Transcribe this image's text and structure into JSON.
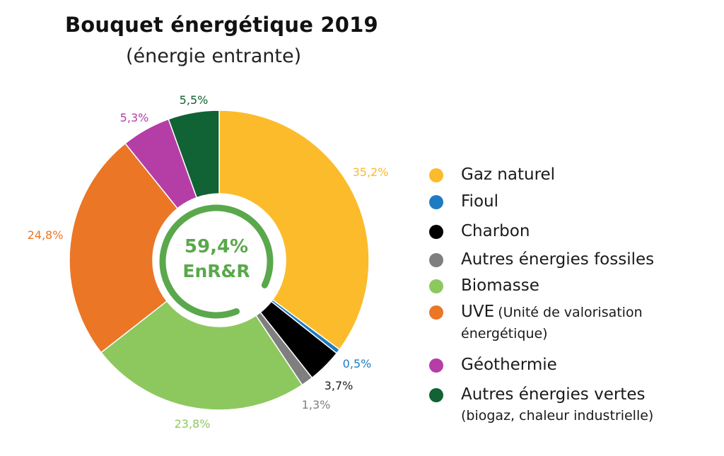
{
  "header": {
    "title": "Bouquet énergétique 2019",
    "subtitle": "(énergie entrante)"
  },
  "center": {
    "value": "59,4%",
    "label": "EnR&R",
    "color": "#5aa84b"
  },
  "chart_data": {
    "type": "pie",
    "title": "Bouquet énergétique 2019",
    "subtitle": "(énergie entrante)",
    "donut": true,
    "start": "top, clockwise",
    "legend_position": "right",
    "slices": [
      {
        "name": "Gaz naturel",
        "value": 35.2,
        "label": "35,2%",
        "color": "#fbbb2b"
      },
      {
        "name": "Fioul",
        "value": 0.5,
        "label": "0,5%",
        "color": "#1f7bc1"
      },
      {
        "name": "Charbon",
        "value": 3.7,
        "label": "3,7%",
        "color": "#000000"
      },
      {
        "name": "Autres énergies fossiles",
        "value": 1.3,
        "label": "1,3%",
        "color": "#7f7f7f"
      },
      {
        "name": "Biomasse",
        "value": 23.8,
        "label": "23,8%",
        "color": "#8dc85f"
      },
      {
        "name": "UVE (Unité de valorisation énergétique)",
        "value": 24.8,
        "label": "24,8%",
        "color": "#eb7625"
      },
      {
        "name": "Géothermie",
        "value": 5.3,
        "label": "5,3%",
        "color": "#b53ea6"
      },
      {
        "name": "Autres énergies vertes (biogaz, chaleur industrielle)",
        "value": 5.5,
        "label": "5,5%",
        "color": "#116234"
      }
    ]
  },
  "legend": [
    {
      "label": "Gaz naturel",
      "note": "",
      "color": "#fbbb2b"
    },
    {
      "label": "Fioul",
      "note": "",
      "color": "#1f7bc1"
    },
    {
      "label": "Charbon",
      "note": "",
      "color": "#000000"
    },
    {
      "label": "Autres énergies fossiles",
      "note": "",
      "color": "#7f7f7f"
    },
    {
      "label": "Biomasse",
      "note": "",
      "color": "#8dc85f"
    },
    {
      "label": "UVE",
      "note": "(Unité de valorisation énergétique)",
      "color": "#eb7625"
    },
    {
      "label": "Géothermie",
      "note": "",
      "color": "#b53ea6"
    },
    {
      "label": "Autres énergies vertes",
      "note": "(biogaz, chaleur industrielle)",
      "color": "#116234"
    }
  ]
}
